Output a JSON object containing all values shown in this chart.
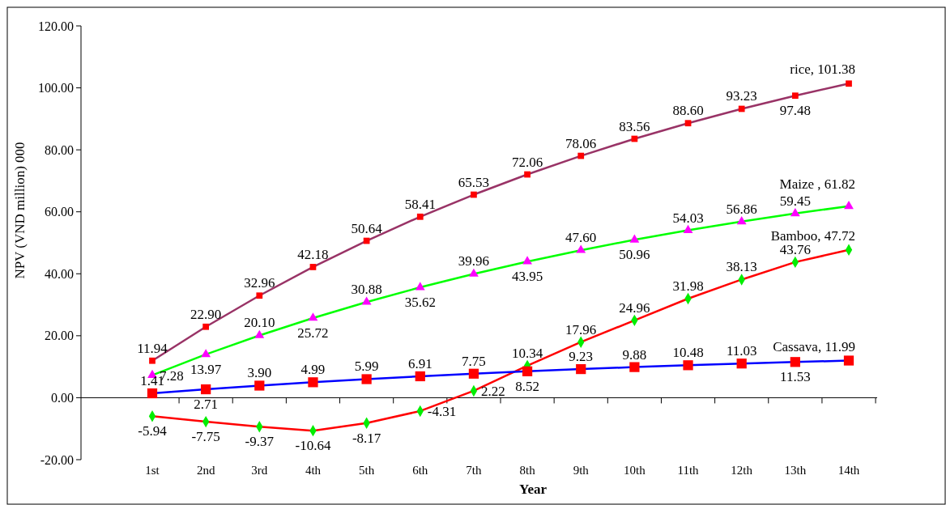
{
  "chart_data": {
    "type": "line",
    "xlabel": "Year",
    "ylabel": "NPV (VND million) 000",
    "categories": [
      "1st",
      "2nd",
      "3rd",
      "4th",
      "5th",
      "6th",
      "7th",
      "8th",
      "9th",
      "10th",
      "11th",
      "12th",
      "13th",
      "14th"
    ],
    "ylim": [
      -20,
      120
    ],
    "yticks": [
      {
        "value": -20,
        "label": "-20.00"
      },
      {
        "value": 0,
        "label": "0.00"
      },
      {
        "value": 20,
        "label": "20.00"
      },
      {
        "value": 40,
        "label": "40.00"
      },
      {
        "value": 60,
        "label": "60.00"
      },
      {
        "value": 80,
        "label": "80.00"
      },
      {
        "value": 100,
        "label": "100.00"
      },
      {
        "value": 120,
        "label": "120.00"
      }
    ],
    "line_style": "solid",
    "series": [
      {
        "color": "#993366",
        "marker": "square",
        "colors": [
          "#ff0000",
          "#ff0000",
          "#ff0000",
          "#ff0000",
          "#ff0000",
          "#ff0000",
          "#ff0000",
          "#ff0000",
          "#ff0000",
          "#ff0000",
          "#ff0000",
          "#ff0000",
          "#ff0000",
          "#ff0000"
        ],
        "values": [
          11.94,
          22.9,
          32.96,
          42.18,
          50.64,
          58.41,
          65.53,
          72.06,
          78.06,
          83.56,
          88.6,
          93.23,
          97.48,
          101.38
        ],
        "value_labels": [
          "11.94",
          "22.90",
          "32.96",
          "42.18",
          "50.64",
          "58.41",
          "65.53",
          "72.06",
          "78.06",
          "83.56",
          "88.60",
          "93.23",
          "97.48",
          "rice, 101.38"
        ]
      },
      {
        "color": "#00ff00",
        "marker": "triangle",
        "colors": [
          "#ff00ff",
          "#ff00ff",
          "#ff00ff",
          "#ff00ff",
          "#ff00ff",
          "#ff00ff",
          "#ff00ff",
          "#ff00ff",
          "#ff00ff",
          "#ff00ff",
          "#ff00ff",
          "#ff00ff",
          "#ff00ff",
          "#ff00ff"
        ],
        "values": [
          7.28,
          13.97,
          20.1,
          25.72,
          30.88,
          35.62,
          39.96,
          43.95,
          47.6,
          50.96,
          54.03,
          56.86,
          59.45,
          61.82
        ],
        "value_labels": [
          "7.28",
          "13.97",
          "20.10",
          "25.72",
          "30.88",
          "35.62",
          "39.96",
          "43.95",
          "47.60",
          "50.96",
          "54.03",
          "56.86",
          "59.45",
          "Maize , 61.82"
        ]
      },
      {
        "color": "#ff0000",
        "marker": "diamond",
        "colors": [
          "#00ee00",
          "#00ee00",
          "#00ee00",
          "#00ee00",
          "#00ee00",
          "#00ee00",
          "#00ee00",
          "#00ee00",
          "#00ee00",
          "#00ee00",
          "#00ee00",
          "#00ee00",
          "#00ee00",
          "#00ee00"
        ],
        "values": [
          -5.94,
          -7.75,
          -9.37,
          -10.64,
          -8.17,
          -4.31,
          2.22,
          10.34,
          17.96,
          24.96,
          31.98,
          38.13,
          43.76,
          47.72
        ],
        "value_labels": [
          "-5.94",
          "-7.75",
          "-9.37",
          "-10.64",
          "-8.17",
          "-4.31",
          "2.22",
          "10.34",
          "17.96",
          "24.96",
          "31.98",
          "38.13",
          "43.76",
          "Bamboo, 47.72"
        ]
      },
      {
        "color": "#0000ff",
        "marker": "square",
        "colors": [
          "#ff0000",
          "#ff0000",
          "#ff0000",
          "#ff0000",
          "#ff0000",
          "#ff0000",
          "#ff0000",
          "#ff0000",
          "#ff0000",
          "#ff0000",
          "#ff0000",
          "#ff0000",
          "#ff0000",
          "#ff0000"
        ],
        "values": [
          1.41,
          2.71,
          3.9,
          4.99,
          5.99,
          6.91,
          7.75,
          8.52,
          9.23,
          9.88,
          10.48,
          11.03,
          11.53,
          11.99
        ],
        "value_labels": [
          "1.41",
          "2.71",
          "3.90",
          "4.99",
          "5.99",
          "6.91",
          "7.75",
          "8.52",
          "9.23",
          "9.88",
          "10.48",
          "11.03",
          "11.53",
          "Cassava, 11.99"
        ]
      }
    ]
  }
}
